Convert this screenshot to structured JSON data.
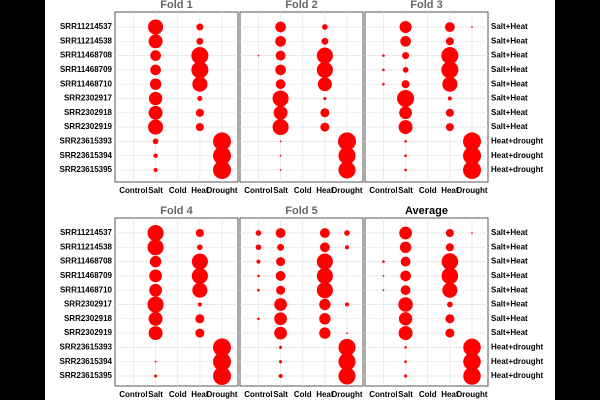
{
  "chart_data": {
    "type": "bubble",
    "color": "#ff0000",
    "rows": [
      "SRR11214537",
      "SRR11214538",
      "SRR11468708",
      "SRR11468709",
      "SRR11468710",
      "SRR2302917",
      "SRR2302918",
      "SRR2302919",
      "SRR23615393",
      "SRR23615394",
      "SRR23615395"
    ],
    "row_groups": [
      "Salt+Heat",
      "Salt+Heat",
      "Salt+Heat",
      "Salt+Heat",
      "Salt+Heat",
      "Salt+Heat",
      "Salt+Heat",
      "Salt+Heat",
      "Heat+drought",
      "Heat+drought",
      "Heat+drought"
    ],
    "columns": [
      "Control",
      "Salt",
      "Cold",
      "Heat",
      "Drought"
    ],
    "panels": [
      {
        "title": "Fold 1",
        "values": [
          [
            0,
            0.7,
            0,
            0.15,
            0
          ],
          [
            0,
            0.6,
            0,
            0.15,
            0
          ],
          [
            0,
            0.35,
            0,
            0.9,
            0
          ],
          [
            0,
            0.35,
            0,
            0.9,
            0
          ],
          [
            0,
            0.4,
            0,
            0.7,
            0
          ],
          [
            0,
            0.55,
            0,
            0.08,
            0
          ],
          [
            0,
            0.6,
            0,
            0.2,
            0
          ],
          [
            0,
            0.7,
            0,
            0.2,
            0
          ],
          [
            0,
            0.1,
            0,
            0,
            1
          ],
          [
            0,
            0.06,
            0,
            0,
            1
          ],
          [
            0,
            0.05,
            0,
            0,
            1
          ]
        ]
      },
      {
        "title": "Fold 2",
        "values": [
          [
            0,
            0.35,
            0,
            0.1,
            0
          ],
          [
            0,
            0.35,
            0,
            0.15,
            0
          ],
          [
            0.01,
            0.3,
            0,
            0.8,
            0
          ],
          [
            0,
            0.35,
            0,
            0.8,
            0
          ],
          [
            0,
            0.3,
            0,
            0.6,
            0
          ],
          [
            0,
            0.8,
            0,
            0.03,
            0
          ],
          [
            0,
            0.6,
            0,
            0.25,
            0
          ],
          [
            0,
            0.8,
            0,
            0.25,
            0
          ],
          [
            0,
            0.01,
            0,
            0,
            1
          ],
          [
            0,
            0.01,
            0,
            0,
            0.9
          ],
          [
            0,
            0.01,
            0,
            0,
            0.9
          ]
        ]
      },
      {
        "title": "Fold 3",
        "values": [
          [
            0,
            0.45,
            0,
            0.3,
            0.01
          ],
          [
            0,
            0.35,
            0,
            0.2,
            0
          ],
          [
            0.02,
            0.15,
            0,
            0.9,
            0
          ],
          [
            0.02,
            0.1,
            0,
            0.9,
            0
          ],
          [
            0.02,
            0.2,
            0,
            0.7,
            0
          ],
          [
            0,
            0.9,
            0,
            0.05,
            0
          ],
          [
            0,
            0.5,
            0,
            0.2,
            0
          ],
          [
            0,
            0.6,
            0,
            0.2,
            0
          ],
          [
            0,
            0.02,
            0,
            0,
            1
          ],
          [
            0,
            0.02,
            0,
            0,
            1
          ],
          [
            0,
            0.02,
            0,
            0,
            1
          ]
        ]
      },
      {
        "title": "Fold 4",
        "values": [
          [
            0,
            0.8,
            0,
            0.2,
            0
          ],
          [
            0,
            0.8,
            0,
            0.1,
            0
          ],
          [
            0,
            0.4,
            0,
            0.8,
            0
          ],
          [
            0,
            0.5,
            0,
            0.8,
            0
          ],
          [
            0,
            0.5,
            0,
            0.7,
            0
          ],
          [
            0,
            0.8,
            0,
            0.05,
            0
          ],
          [
            0,
            0.6,
            0,
            0.25,
            0
          ],
          [
            0,
            0.6,
            0,
            0.25,
            0
          ],
          [
            0,
            0,
            0,
            0,
            1
          ],
          [
            0,
            0.01,
            0,
            0,
            1
          ],
          [
            0,
            0.03,
            0,
            0,
            1
          ]
        ]
      },
      {
        "title": "Fold 5",
        "values": [
          [
            0.1,
            0.3,
            0,
            0.3,
            0.1
          ],
          [
            0.1,
            0.15,
            0,
            0.3,
            0.05
          ],
          [
            0.05,
            0.25,
            0,
            0.8,
            0
          ],
          [
            0.02,
            0.3,
            0,
            0.8,
            0
          ],
          [
            0.02,
            0.25,
            0,
            0.8,
            0
          ],
          [
            0,
            0.5,
            0,
            0.4,
            0.05
          ],
          [
            0.02,
            0.5,
            0,
            0.4,
            0
          ],
          [
            0,
            0.5,
            0,
            0.4,
            0.01
          ],
          [
            0,
            0.03,
            0,
            0,
            0.9
          ],
          [
            0,
            0.03,
            0,
            0,
            0.9
          ],
          [
            0,
            0.05,
            0,
            0,
            0.9
          ]
        ]
      },
      {
        "title": "Average",
        "values": [
          [
            0,
            0.5,
            0,
            0.2,
            0.01
          ],
          [
            0,
            0.4,
            0,
            0.2,
            0
          ],
          [
            0.02,
            0.3,
            0,
            0.85,
            0
          ],
          [
            0.01,
            0.35,
            0,
            0.85,
            0
          ],
          [
            0.01,
            0.3,
            0,
            0.7,
            0
          ],
          [
            0,
            0.65,
            0,
            0.1,
            0
          ],
          [
            0,
            0.55,
            0,
            0.25,
            0
          ],
          [
            0,
            0.6,
            0,
            0.25,
            0
          ],
          [
            0,
            0.02,
            0,
            0,
            0.95
          ],
          [
            0,
            0.02,
            0,
            0,
            0.95
          ],
          [
            0,
            0.03,
            0,
            0,
            0.95
          ]
        ]
      }
    ]
  }
}
